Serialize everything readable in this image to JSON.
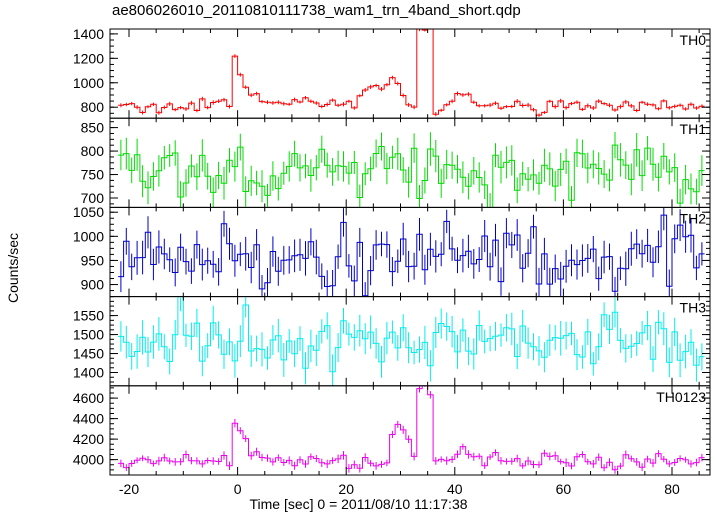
{
  "figure": {
    "title": "ae806026010_20110810111738_wam1_trn_4band_short.qdp",
    "xlabel": "Time [sec] 0 = 2011/08/10 11:17:38",
    "ylabel": "Counts/sec"
  },
  "chart_data": {
    "type": "line",
    "title": "ae806026010_20110810111738_wam1_trn_4band_short.qdp",
    "xlabel": "Time [sec] 0 = 2011/08/10 11:17:38",
    "ylabel": "Counts/sec",
    "xlim": [
      -23.5,
      87
    ],
    "x_ticks": [
      -20,
      0,
      20,
      40,
      60,
      80
    ],
    "bin_width_sec": 1,
    "grid": false,
    "panels": [
      {
        "name": "TH0",
        "color": "#ff0000",
        "ylim": [
          710,
          1440
        ],
        "y_ticks": [
          800,
          1000,
          1200,
          1400
        ],
        "baseline": 810,
        "features": [
          {
            "t": -0.5,
            "value": 1170,
            "type": "step-decay",
            "decay": 2.5
          },
          {
            "t": 28.5,
            "value": 1060,
            "type": "bump",
            "width": 1.5
          },
          {
            "t": 24.5,
            "value": 960,
            "type": "bump",
            "width": 1.2
          },
          {
            "t": 33.5,
            "value": 1430,
            "type": "box",
            "length": 3
          },
          {
            "t": 41.5,
            "value": 930,
            "type": "bump",
            "width": 1.5
          },
          {
            "t": 14.0,
            "value": 850,
            "type": "bump",
            "width": 3
          },
          {
            "t": 73.5,
            "value": 720,
            "type": "dip",
            "width": 0.6
          }
        ],
        "noise": 25,
        "error": 15
      },
      {
        "name": "TH1",
        "color": "#00dd00",
        "ylim": [
          680,
          870
        ],
        "y_ticks": [
          700,
          750,
          800,
          850
        ],
        "baseline": 760,
        "features": [],
        "noise": 32,
        "error": 30
      },
      {
        "name": "TH2",
        "color": "#0000cc",
        "ylim": [
          875,
          1060
        ],
        "y_ticks": [
          900,
          950,
          1000,
          1050
        ],
        "baseline": 960,
        "features": [],
        "noise": 38,
        "error": 30
      },
      {
        "name": "TH3",
        "color": "#00eeee",
        "ylim": [
          1365,
          1600
        ],
        "y_ticks": [
          1400,
          1450,
          1500,
          1550
        ],
        "baseline": 1475,
        "features": [],
        "noise": 38,
        "error": 38
      },
      {
        "name": "TH0123",
        "color": "#ee00ee",
        "ylim": [
          3850,
          4720
        ],
        "y_ticks": [
          4000,
          4200,
          4400,
          4600
        ],
        "baseline": 3990,
        "features": [
          {
            "t": -0.5,
            "value": 4410,
            "type": "step-decay",
            "decay": 2.5
          },
          {
            "t": 28.5,
            "value": 4270,
            "type": "box",
            "length": 4
          },
          {
            "t": 33.5,
            "value": 4700,
            "type": "box",
            "length": 3
          },
          {
            "t": 41.5,
            "value": 4100,
            "type": "bump",
            "width": 1.5
          }
        ],
        "noise": 35,
        "error": 35
      }
    ]
  }
}
